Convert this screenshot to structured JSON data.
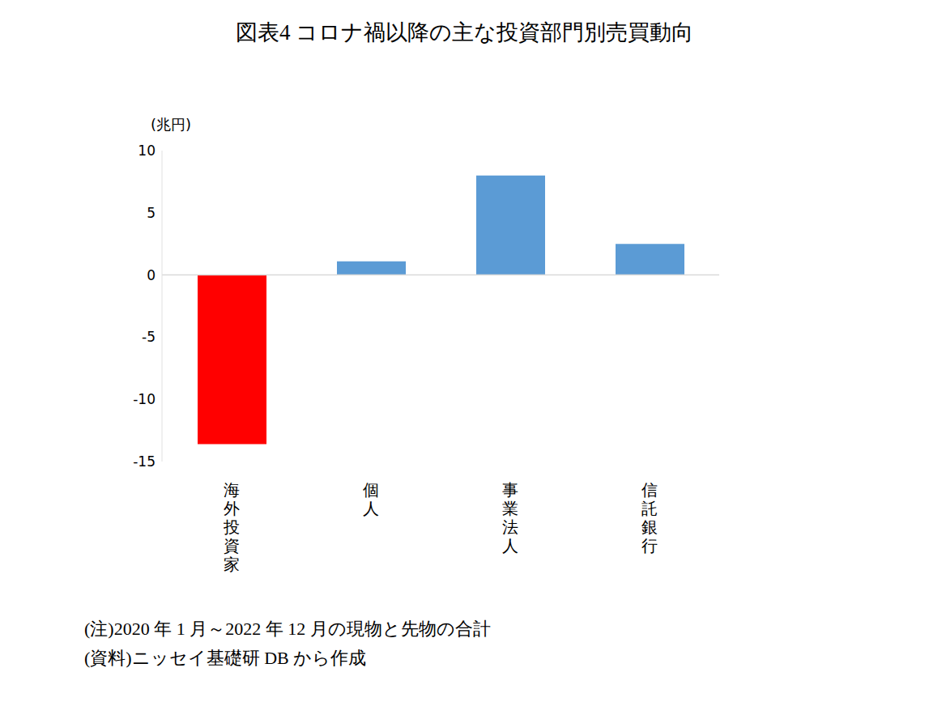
{
  "chart_data": {
    "type": "bar",
    "title": "図表4  コロナ禍以降の主な投資部門別売買動向",
    "y_label": "(兆円)",
    "categories": [
      "海外投資家",
      "個人",
      "事業法人",
      "信託銀行"
    ],
    "values": [
      -13.6,
      1.1,
      8.0,
      2.5
    ],
    "colors": [
      "#ff0000",
      "#5b9bd5",
      "#5b9bd5",
      "#5b9bd5"
    ],
    "ylim": [
      -15,
      10
    ],
    "yticks": [
      -15,
      -10,
      -5,
      0,
      5,
      10
    ],
    "grid": false,
    "notes": [
      "(注)2020 年 1 月～2022 年 12 月の現物と先物の合計",
      "(資料)ニッセイ基礎研 DB から作成"
    ]
  }
}
